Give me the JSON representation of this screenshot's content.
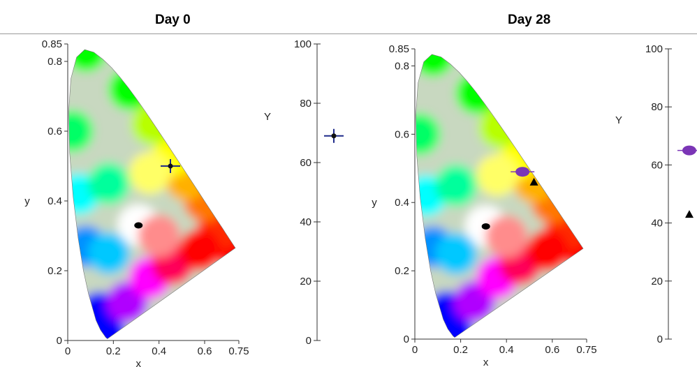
{
  "titles": {
    "left": "Day 0",
    "right": "Day 28"
  },
  "colors": {
    "cross_marker": "#1f2a8a",
    "circle_marker": "#7b35b6",
    "white_point": "#000000",
    "triangle_marker": "#000000",
    "axis": "#333333"
  },
  "chart_data": [
    {
      "type": "scatter",
      "panel": "Day 0",
      "subtype": "cie-1931-chromaticity",
      "xlabel": "x",
      "ylabel": "y",
      "xlim": [
        0,
        0.75
      ],
      "ylim": [
        0,
        0.85
      ],
      "xticks": [
        "0",
        "0.2",
        "0.4",
        "0.6",
        "0.75"
      ],
      "yticks": [
        "0",
        "0.2",
        "0.4",
        "0.6",
        "0.8",
        "0.85"
      ],
      "points": [
        {
          "x": 0.31,
          "y": 0.33,
          "marker": "circle-black"
        },
        {
          "x": 0.45,
          "y": 0.5,
          "marker": "cross"
        }
      ]
    },
    {
      "type": "scatter",
      "panel": "Day 0",
      "subtype": "luminance",
      "ylabel": "Y",
      "ylim": [
        0,
        100
      ],
      "yticks": [
        "0",
        "20",
        "40",
        "60",
        "80",
        "100"
      ],
      "points": [
        {
          "y": 69,
          "marker": "cross"
        }
      ]
    },
    {
      "type": "scatter",
      "panel": "Day 28",
      "subtype": "cie-1931-chromaticity",
      "xlabel": "x",
      "ylabel": "y",
      "xlim": [
        0,
        0.75
      ],
      "ylim": [
        0,
        0.85
      ],
      "xticks": [
        "0",
        "0.2",
        "0.4",
        "0.6",
        "0.75"
      ],
      "yticks": [
        "0",
        "0.2",
        "0.4",
        "0.6",
        "0.8",
        "0.85"
      ],
      "points": [
        {
          "x": 0.31,
          "y": 0.33,
          "marker": "circle-black"
        },
        {
          "x": 0.47,
          "y": 0.49,
          "marker": "circle-purple"
        },
        {
          "x": 0.52,
          "y": 0.46,
          "marker": "triangle"
        }
      ]
    },
    {
      "type": "scatter",
      "panel": "Day 28",
      "subtype": "luminance",
      "ylabel": "Y",
      "ylim": [
        0,
        100
      ],
      "yticks": [
        "0",
        "20",
        "40",
        "60",
        "80",
        "100"
      ],
      "points": [
        {
          "y": 65,
          "marker": "circle-purple"
        },
        {
          "y": 43,
          "marker": "triangle"
        }
      ]
    }
  ]
}
